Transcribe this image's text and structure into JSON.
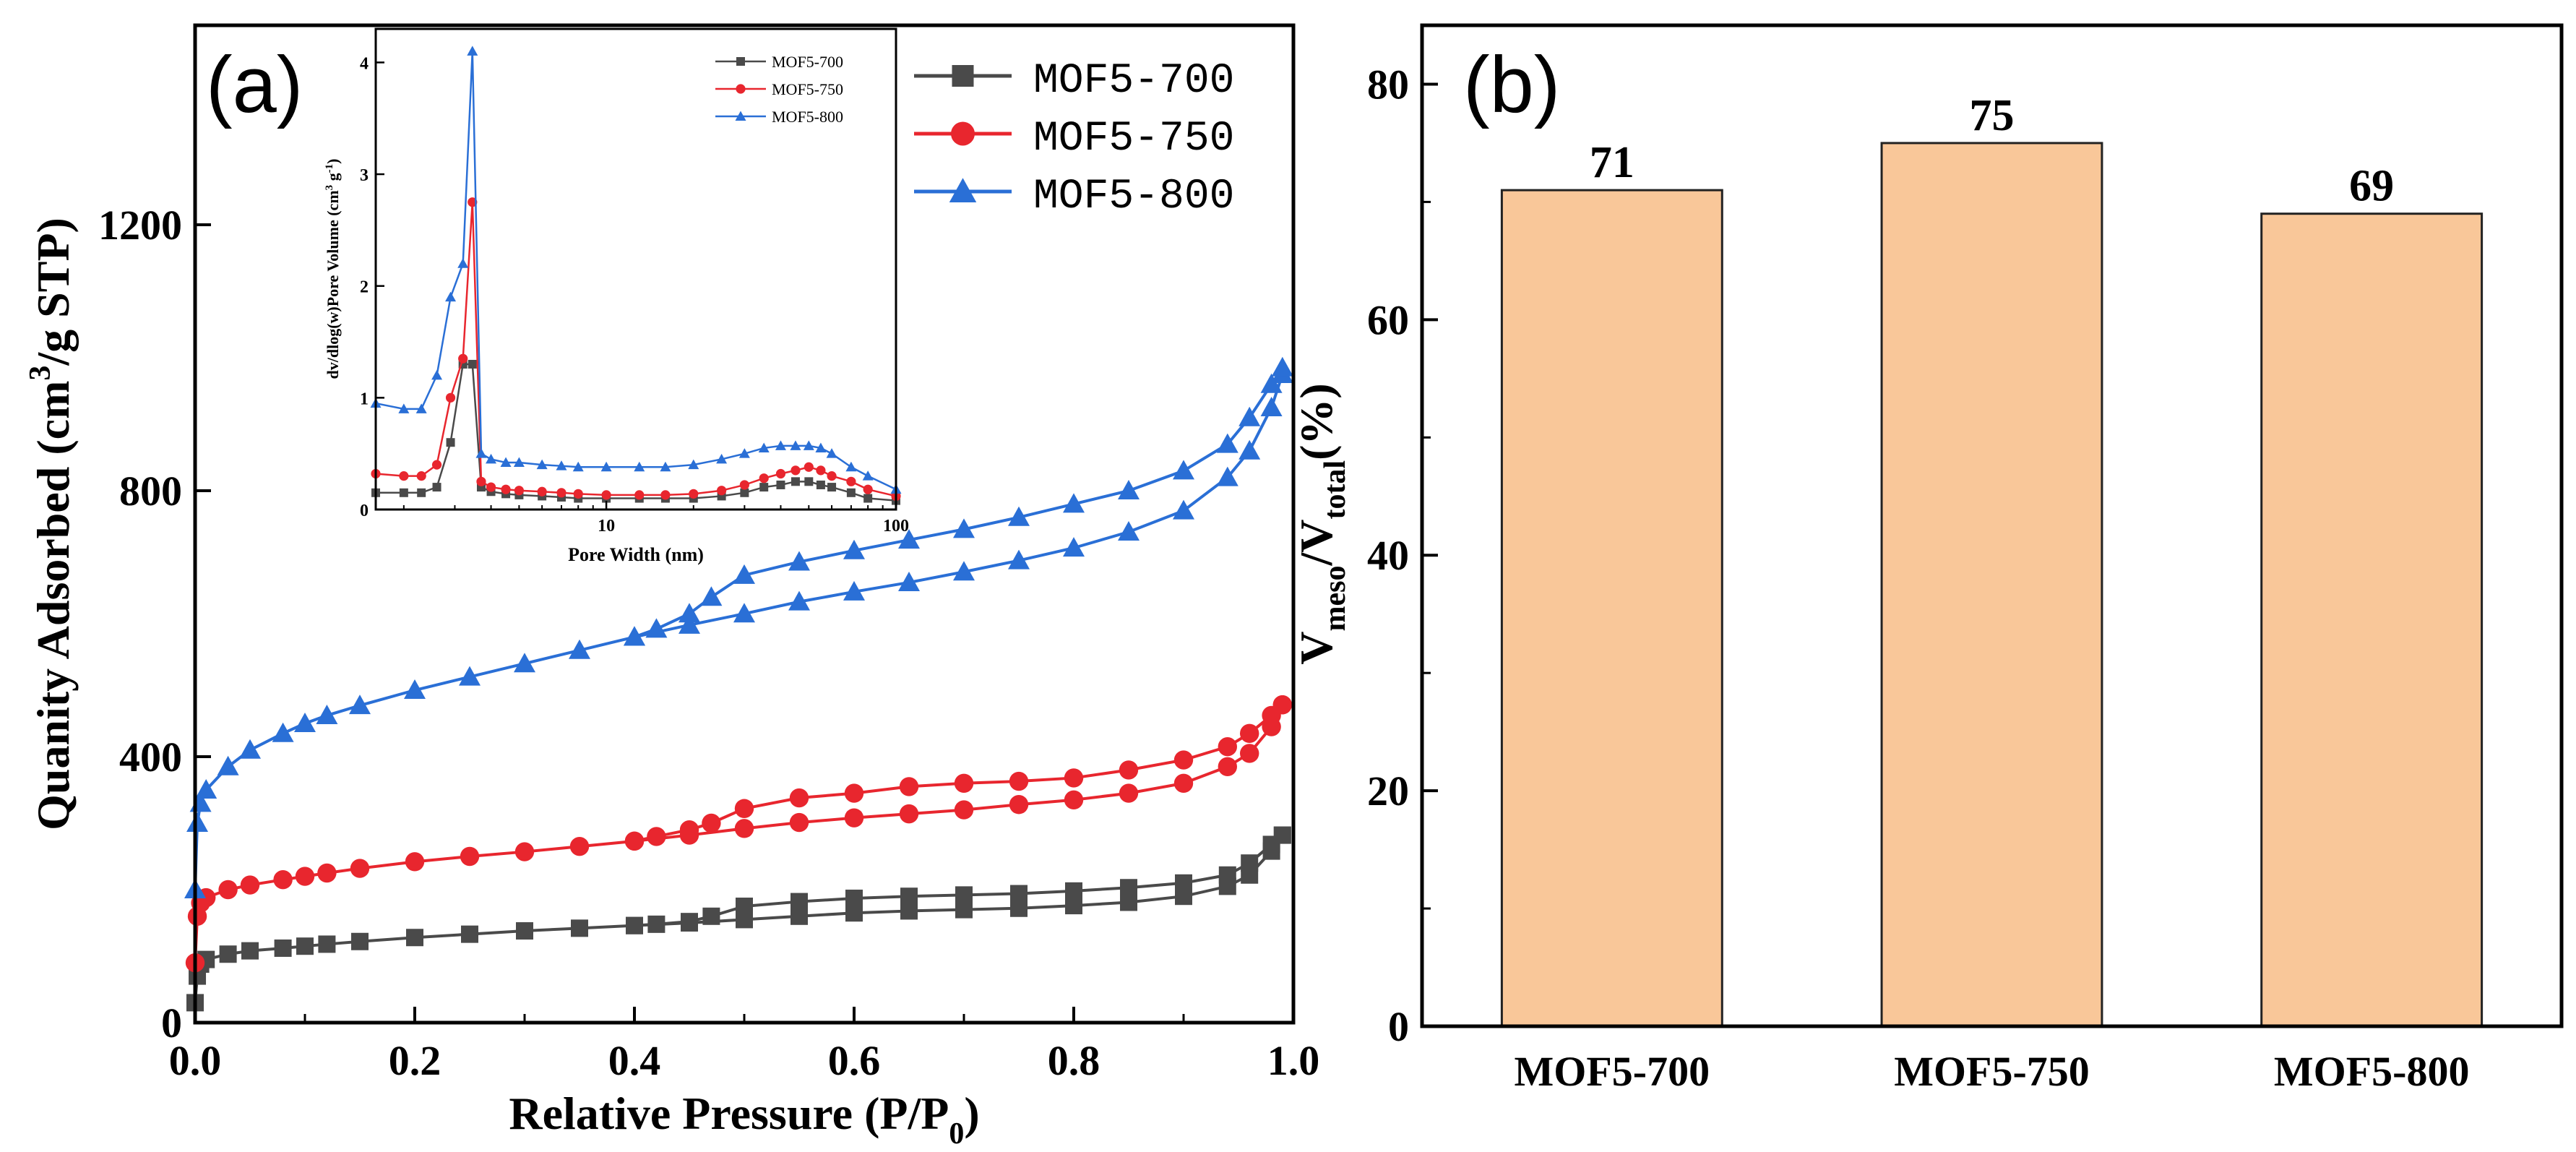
{
  "figure": {
    "colors": {
      "series_700": "#4a4a4a",
      "series_750": "#e8262e",
      "series_800": "#2a6fd6",
      "bar_fill": "#f9c799",
      "axis": "#000000"
    }
  },
  "chart_data": [
    {
      "id": "a",
      "type": "line",
      "panel_label": "(a)",
      "title": "",
      "xlabel_main": "Relative Pressure (P/P",
      "xlabel_sub": "0",
      "xlabel_end": ")",
      "ylabel_main": "Quanity Adsorbed (cm",
      "ylabel_sup": "3",
      "ylabel_end": "/g STP)",
      "xlim": [
        0,
        1.0
      ],
      "ylim": [
        0,
        1500
      ],
      "xticks": [
        0.0,
        0.2,
        0.4,
        0.6,
        0.8,
        1.0
      ],
      "xtick_labels": [
        "0.0",
        "0.2",
        "0.4",
        "0.6",
        "0.8",
        "1.0"
      ],
      "yticks": [
        0,
        400,
        800,
        1200
      ],
      "ytick_labels": [
        "0",
        "400",
        "800",
        "1200"
      ],
      "legend": {
        "placement": "top-right",
        "entries": [
          "MOF5-700",
          "MOF5-750",
          "MOF5-800"
        ]
      },
      "series": [
        {
          "name": "MOF5-700",
          "color_key": "series_700",
          "marker": "square",
          "adsorption": {
            "x": [
              0.0,
              0.002,
              0.005,
              0.01,
              0.03,
              0.05,
              0.08,
              0.1,
              0.12,
              0.15,
              0.2,
              0.25,
              0.3,
              0.35,
              0.4,
              0.45,
              0.5,
              0.55,
              0.6,
              0.65,
              0.7,
              0.75,
              0.8,
              0.85,
              0.9,
              0.94,
              0.96,
              0.98,
              0.99
            ],
            "y": [
              30,
              70,
              88,
              95,
              103,
              108,
              112,
              115,
              118,
              122,
              128,
              133,
              138,
              142,
              146,
              150,
              155,
              160,
              165,
              168,
              170,
              172,
              176,
              181,
              190,
              205,
              222,
              258,
              282
            ]
          },
          "desorption": {
            "x": [
              0.99,
              0.98,
              0.96,
              0.94,
              0.9,
              0.85,
              0.8,
              0.75,
              0.7,
              0.65,
              0.6,
              0.55,
              0.5,
              0.47,
              0.45,
              0.42,
              0.4
            ],
            "y": [
              282,
              268,
              240,
              222,
              210,
              203,
              198,
              194,
              192,
              190,
              187,
              182,
              175,
              160,
              152,
              148,
              146
            ]
          }
        },
        {
          "name": "MOF5-750",
          "color_key": "series_750",
          "marker": "circle",
          "adsorption": {
            "x": [
              0.0,
              0.002,
              0.005,
              0.01,
              0.03,
              0.05,
              0.08,
              0.1,
              0.12,
              0.15,
              0.2,
              0.25,
              0.3,
              0.35,
              0.4,
              0.45,
              0.5,
              0.55,
              0.6,
              0.65,
              0.7,
              0.75,
              0.8,
              0.85,
              0.9,
              0.94,
              0.96,
              0.98,
              0.99
            ],
            "y": [
              90,
              160,
              180,
              188,
              200,
              207,
              215,
              220,
              225,
              232,
              242,
              250,
              257,
              265,
              273,
              282,
              292,
              301,
              308,
              314,
              320,
              328,
              335,
              345,
              360,
              385,
              405,
              445,
              478
            ]
          },
          "desorption": {
            "x": [
              0.99,
              0.98,
              0.96,
              0.94,
              0.9,
              0.85,
              0.8,
              0.75,
              0.7,
              0.65,
              0.6,
              0.55,
              0.5,
              0.47,
              0.45,
              0.42,
              0.4
            ],
            "y": [
              478,
              462,
              435,
              415,
              395,
              380,
              368,
              363,
              360,
              355,
              345,
              338,
              322,
              300,
              290,
              280,
              273
            ]
          }
        },
        {
          "name": "MOF5-800",
          "color_key": "series_800",
          "marker": "triangle",
          "adsorption": {
            "x": [
              0.0,
              0.002,
              0.005,
              0.01,
              0.03,
              0.05,
              0.08,
              0.1,
              0.12,
              0.15,
              0.2,
              0.25,
              0.3,
              0.35,
              0.4,
              0.45,
              0.5,
              0.55,
              0.6,
              0.65,
              0.7,
              0.75,
              0.8,
              0.85,
              0.9,
              0.94,
              0.96,
              0.98,
              0.99
            ],
            "y": [
              200,
              300,
              330,
              350,
              385,
              410,
              435,
              450,
              462,
              477,
              500,
              520,
              540,
              560,
              580,
              598,
              615,
              633,
              648,
              662,
              678,
              695,
              714,
              738,
              770,
              820,
              860,
              925,
              975
            ]
          },
          "desorption": {
            "x": [
              0.99,
              0.98,
              0.96,
              0.94,
              0.9,
              0.85,
              0.8,
              0.75,
              0.7,
              0.65,
              0.6,
              0.55,
              0.5,
              0.47,
              0.45,
              0.42,
              0.4
            ],
            "y": [
              985,
              960,
              910,
              870,
              830,
              800,
              780,
              760,
              742,
              726,
              710,
              693,
              673,
              640,
              615,
              592,
              580
            ]
          }
        }
      ]
    },
    {
      "id": "a-inset",
      "type": "line",
      "title": "",
      "xlabel": "Pore Width (nm)",
      "ylabel_main": "dv/dlog(w)Pore Volume (cm",
      "ylabel_sup": "3",
      "ylabel_mid": " g",
      "ylabel_sup2": "-1",
      "ylabel_end": ")",
      "xscale": "log",
      "xlim": [
        1.6,
        100
      ],
      "ylim": [
        0,
        4.3
      ],
      "xticks": [
        10,
        100
      ],
      "xtick_labels": [
        "10",
        "100"
      ],
      "yticks": [
        0,
        1,
        2,
        3,
        4
      ],
      "ytick_labels": [
        "0",
        "1",
        "2",
        "3",
        "4"
      ],
      "legend": {
        "placement": "top-right",
        "entries": [
          "MOF5-700",
          "MOF5-750",
          "MOF5-800"
        ]
      },
      "series": [
        {
          "name": "MOF5-700",
          "color_key": "series_700",
          "marker": "square",
          "x": [
            1.6,
            2.0,
            2.3,
            2.6,
            2.9,
            3.2,
            3.45,
            3.7,
            4.0,
            4.5,
            5,
            6,
            7,
            8,
            10,
            13,
            16,
            20,
            25,
            30,
            35,
            40,
            45,
            50,
            55,
            60,
            70,
            80,
            100
          ],
          "y": [
            0.15,
            0.15,
            0.15,
            0.2,
            0.6,
            1.3,
            1.3,
            0.2,
            0.16,
            0.14,
            0.13,
            0.12,
            0.11,
            0.1,
            0.1,
            0.1,
            0.1,
            0.1,
            0.12,
            0.15,
            0.2,
            0.22,
            0.25,
            0.25,
            0.22,
            0.2,
            0.15,
            0.1,
            0.08
          ]
        },
        {
          "name": "MOF5-750",
          "color_key": "series_750",
          "marker": "circle",
          "x": [
            1.6,
            2.0,
            2.3,
            2.6,
            2.9,
            3.2,
            3.45,
            3.7,
            4.0,
            4.5,
            5,
            6,
            7,
            8,
            10,
            13,
            16,
            20,
            25,
            30,
            35,
            40,
            45,
            50,
            55,
            60,
            70,
            80,
            100
          ],
          "y": [
            0.32,
            0.3,
            0.3,
            0.4,
            1.0,
            1.35,
            2.75,
            0.25,
            0.2,
            0.18,
            0.17,
            0.16,
            0.15,
            0.14,
            0.13,
            0.13,
            0.13,
            0.14,
            0.17,
            0.22,
            0.28,
            0.32,
            0.35,
            0.38,
            0.35,
            0.3,
            0.25,
            0.18,
            0.12
          ]
        },
        {
          "name": "MOF5-800",
          "color_key": "series_800",
          "marker": "triangle",
          "x": [
            1.6,
            2.0,
            2.3,
            2.6,
            2.9,
            3.2,
            3.45,
            3.7,
            4.0,
            4.5,
            5,
            6,
            7,
            8,
            10,
            13,
            16,
            20,
            25,
            30,
            35,
            40,
            45,
            50,
            55,
            60,
            70,
            80,
            100
          ],
          "y": [
            0.95,
            0.9,
            0.9,
            1.2,
            1.9,
            2.2,
            4.1,
            0.5,
            0.45,
            0.42,
            0.42,
            0.4,
            0.39,
            0.38,
            0.38,
            0.38,
            0.38,
            0.4,
            0.45,
            0.5,
            0.55,
            0.57,
            0.57,
            0.57,
            0.55,
            0.5,
            0.38,
            0.3,
            0.18
          ]
        }
      ]
    },
    {
      "id": "b",
      "type": "bar",
      "panel_label": "(b)",
      "title": "",
      "xlabel": "",
      "ylabel_v1": "V",
      "ylabel_sub1": "meso",
      "ylabel_slash": "/V",
      "ylabel_sub2": "total",
      "ylabel_end": "(%)",
      "categories": [
        "MOF5-700",
        "MOF5-750",
        "MOF5-800"
      ],
      "values": [
        71,
        75,
        69
      ],
      "data_labels": [
        "71",
        "75",
        "69"
      ],
      "ylim": [
        0,
        85
      ],
      "yticks": [
        0,
        20,
        40,
        60,
        80
      ],
      "ytick_labels": [
        "0",
        "20",
        "40",
        "60",
        "80"
      ]
    }
  ]
}
